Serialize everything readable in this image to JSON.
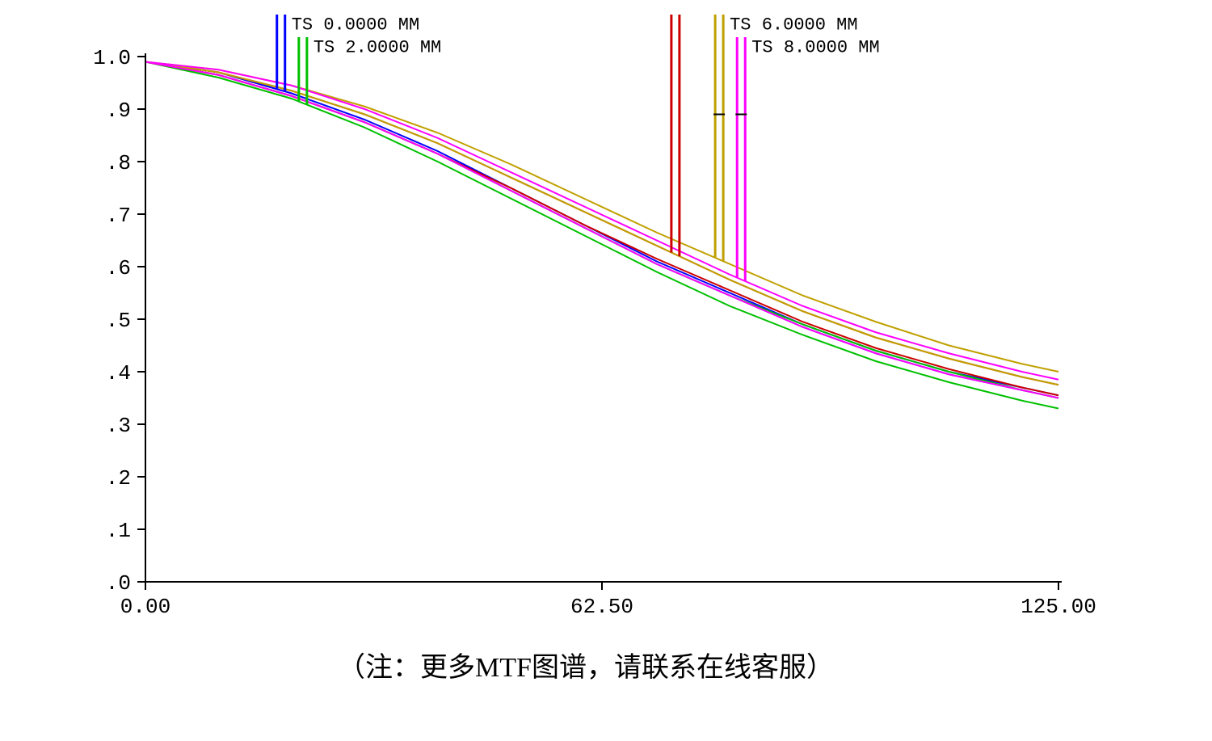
{
  "caption": "（注：更多MTF图谱，请联系在线客服）",
  "chart": {
    "type": "line",
    "background_color": "#ffffff",
    "axis_color": "#000000",
    "axis_stroke_width": 2,
    "tick_length": 10,
    "label_fontsize": 26,
    "label_color": "#000000",
    "xlim": [
      0,
      125
    ],
    "ylim": [
      0,
      1.0
    ],
    "xticks": [
      {
        "v": 0.0,
        "label": "0.00"
      },
      {
        "v": 62.5,
        "label": "62.50"
      },
      {
        "v": 125.0,
        "label": "125.00"
      }
    ],
    "yticks": [
      {
        "v": 0.0,
        "label": ".0"
      },
      {
        "v": 0.1,
        "label": ".1"
      },
      {
        "v": 0.2,
        "label": ".2"
      },
      {
        "v": 0.3,
        "label": ".3"
      },
      {
        "v": 0.4,
        "label": ".4"
      },
      {
        "v": 0.5,
        "label": ".5"
      },
      {
        "v": 0.6,
        "label": ".6"
      },
      {
        "v": 0.7,
        "label": ".7"
      },
      {
        "v": 0.8,
        "label": ".8"
      },
      {
        "v": 0.9,
        "label": ".9"
      },
      {
        "v": 1.0,
        "label": "1.0"
      }
    ],
    "legend_groups": [
      {
        "label": "TS 0.0000 MM",
        "x": 18,
        "colors": [
          "#0000ff",
          "#0000ff"
        ],
        "label_offset_line": 0
      },
      {
        "label": "TS 2.0000 MM",
        "x": 21,
        "colors": [
          "#00c000",
          "#00c000"
        ],
        "label_offset_line": 1
      },
      {
        "label": "TS 6.0000 MM",
        "x": 78,
        "colors": [
          "#c0a000",
          "#c0a000"
        ],
        "label_offset_line": 0
      },
      {
        "label": "TS 8.0000 MM",
        "x": 81,
        "colors": [
          "#ff00ff",
          "#ff00ff"
        ],
        "label_offset_line": 1
      }
    ],
    "legend_marker_top_y": 1.06,
    "legend_line_stroke_width": 3,
    "legend_label_fontsize": 22,
    "legend_red_marker_x": 72,
    "legend_red_marker_color": "#cc0000",
    "series": [
      {
        "name": "blue-T",
        "color": "#0000ff",
        "stroke_width": 2,
        "points": [
          [
            0,
            0.99
          ],
          [
            10,
            0.97
          ],
          [
            20,
            0.93
          ],
          [
            30,
            0.88
          ],
          [
            40,
            0.82
          ],
          [
            50,
            0.75
          ],
          [
            60,
            0.68
          ],
          [
            70,
            0.61
          ],
          [
            80,
            0.55
          ],
          [
            90,
            0.49
          ],
          [
            100,
            0.44
          ],
          [
            110,
            0.4
          ],
          [
            120,
            0.37
          ],
          [
            125,
            0.355
          ]
        ]
      },
      {
        "name": "blue-S",
        "color": "#0000ff",
        "stroke_width": 2,
        "points": [
          [
            0,
            0.99
          ],
          [
            10,
            0.965
          ],
          [
            20,
            0.925
          ],
          [
            30,
            0.875
          ],
          [
            40,
            0.815
          ],
          [
            50,
            0.745
          ],
          [
            60,
            0.675
          ],
          [
            70,
            0.605
          ],
          [
            80,
            0.545
          ],
          [
            90,
            0.485
          ],
          [
            100,
            0.435
          ],
          [
            110,
            0.395
          ],
          [
            120,
            0.365
          ],
          [
            125,
            0.35
          ]
        ]
      },
      {
        "name": "green-T",
        "color": "#00c000",
        "stroke_width": 2,
        "points": [
          [
            0,
            0.99
          ],
          [
            10,
            0.96
          ],
          [
            20,
            0.92
          ],
          [
            30,
            0.865
          ],
          [
            40,
            0.8
          ],
          [
            50,
            0.73
          ],
          [
            60,
            0.66
          ],
          [
            70,
            0.59
          ],
          [
            80,
            0.525
          ],
          [
            90,
            0.47
          ],
          [
            100,
            0.42
          ],
          [
            110,
            0.38
          ],
          [
            120,
            0.345
          ],
          [
            125,
            0.33
          ]
        ]
      },
      {
        "name": "green-S",
        "color": "#00c000",
        "stroke_width": 2,
        "points": [
          [
            0,
            0.99
          ],
          [
            10,
            0.965
          ],
          [
            20,
            0.925
          ],
          [
            30,
            0.875
          ],
          [
            40,
            0.815
          ],
          [
            50,
            0.745
          ],
          [
            60,
            0.675
          ],
          [
            70,
            0.605
          ],
          [
            80,
            0.545
          ],
          [
            90,
            0.49
          ],
          [
            100,
            0.44
          ],
          [
            110,
            0.4
          ],
          [
            120,
            0.365
          ],
          [
            125,
            0.35
          ]
        ]
      },
      {
        "name": "red-T",
        "color": "#cc0000",
        "stroke_width": 2,
        "points": [
          [
            0,
            0.99
          ],
          [
            10,
            0.97
          ],
          [
            20,
            0.935
          ],
          [
            30,
            0.89
          ],
          [
            40,
            0.835
          ],
          [
            50,
            0.77
          ],
          [
            60,
            0.705
          ],
          [
            70,
            0.64
          ],
          [
            80,
            0.575
          ],
          [
            90,
            0.515
          ],
          [
            100,
            0.465
          ],
          [
            110,
            0.425
          ],
          [
            120,
            0.39
          ],
          [
            125,
            0.375
          ]
        ]
      },
      {
        "name": "red-S",
        "color": "#cc0000",
        "stroke_width": 2,
        "points": [
          [
            0,
            0.99
          ],
          [
            10,
            0.965
          ],
          [
            20,
            0.925
          ],
          [
            30,
            0.875
          ],
          [
            40,
            0.815
          ],
          [
            50,
            0.75
          ],
          [
            60,
            0.68
          ],
          [
            70,
            0.615
          ],
          [
            80,
            0.555
          ],
          [
            90,
            0.495
          ],
          [
            100,
            0.445
          ],
          [
            110,
            0.405
          ],
          [
            120,
            0.37
          ],
          [
            125,
            0.355
          ]
        ]
      },
      {
        "name": "yellow-T",
        "color": "#c0a000",
        "stroke_width": 2,
        "points": [
          [
            0,
            0.99
          ],
          [
            10,
            0.975
          ],
          [
            20,
            0.945
          ],
          [
            30,
            0.905
          ],
          [
            40,
            0.855
          ],
          [
            50,
            0.795
          ],
          [
            60,
            0.73
          ],
          [
            70,
            0.665
          ],
          [
            80,
            0.605
          ],
          [
            90,
            0.545
          ],
          [
            100,
            0.495
          ],
          [
            110,
            0.45
          ],
          [
            120,
            0.415
          ],
          [
            125,
            0.4
          ]
        ]
      },
      {
        "name": "yellow-S",
        "color": "#c0a000",
        "stroke_width": 2,
        "points": [
          [
            0,
            0.99
          ],
          [
            10,
            0.97
          ],
          [
            20,
            0.935
          ],
          [
            30,
            0.89
          ],
          [
            40,
            0.835
          ],
          [
            50,
            0.77
          ],
          [
            60,
            0.705
          ],
          [
            70,
            0.64
          ],
          [
            80,
            0.575
          ],
          [
            90,
            0.515
          ],
          [
            100,
            0.465
          ],
          [
            110,
            0.425
          ],
          [
            120,
            0.39
          ],
          [
            125,
            0.375
          ]
        ]
      },
      {
        "name": "magenta-T",
        "color": "#ff00ff",
        "stroke_width": 2,
        "points": [
          [
            0,
            0.99
          ],
          [
            10,
            0.975
          ],
          [
            20,
            0.945
          ],
          [
            30,
            0.9
          ],
          [
            40,
            0.845
          ],
          [
            50,
            0.78
          ],
          [
            60,
            0.715
          ],
          [
            70,
            0.65
          ],
          [
            80,
            0.585
          ],
          [
            90,
            0.525
          ],
          [
            100,
            0.475
          ],
          [
            110,
            0.435
          ],
          [
            120,
            0.4
          ],
          [
            125,
            0.385
          ]
        ]
      },
      {
        "name": "magenta-S",
        "color": "#ff00ff",
        "stroke_width": 2,
        "points": [
          [
            0,
            0.99
          ],
          [
            10,
            0.965
          ],
          [
            20,
            0.925
          ],
          [
            30,
            0.875
          ],
          [
            40,
            0.815
          ],
          [
            50,
            0.745
          ],
          [
            60,
            0.675
          ],
          [
            70,
            0.605
          ],
          [
            80,
            0.545
          ],
          [
            90,
            0.485
          ],
          [
            100,
            0.435
          ],
          [
            110,
            0.395
          ],
          [
            120,
            0.365
          ],
          [
            125,
            0.35
          ]
        ]
      }
    ]
  }
}
